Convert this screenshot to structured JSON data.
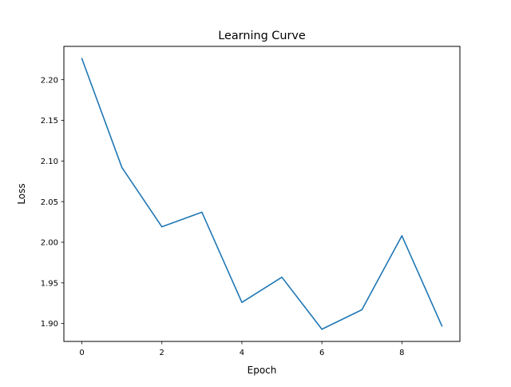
{
  "chart_data": {
    "type": "line",
    "title": "Learning Curve",
    "xlabel": "Epoch",
    "ylabel": "Loss",
    "xlim": [
      -0.45,
      9.45
    ],
    "ylim": [
      1.878,
      2.241
    ],
    "xticks": [
      0,
      2,
      4,
      6,
      8
    ],
    "xtick_labels": [
      "0",
      "2",
      "4",
      "6",
      "8"
    ],
    "yticks": [
      1.9,
      1.95,
      2.0,
      2.05,
      2.1,
      2.15,
      2.2
    ],
    "ytick_labels": [
      "1.90",
      "1.95",
      "2.00",
      "2.05",
      "2.10",
      "2.15",
      "2.20"
    ],
    "grid": false,
    "series": [
      {
        "color": "#1f77b4",
        "x": [
          0,
          1,
          2,
          3,
          4,
          5,
          6,
          7,
          8,
          9
        ],
        "y": [
          2.226,
          2.092,
          2.019,
          2.037,
          1.926,
          1.957,
          1.893,
          1.917,
          2.008,
          1.897
        ]
      }
    ]
  }
}
